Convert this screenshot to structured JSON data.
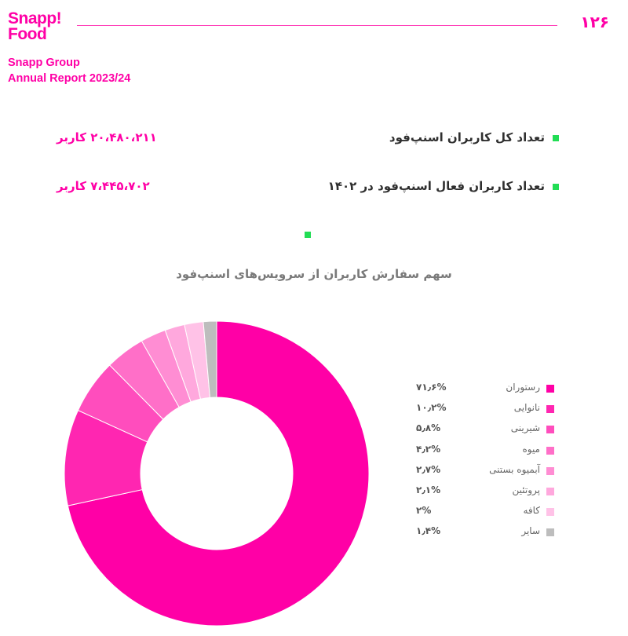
{
  "header": {
    "logo_line1": "Snapp!",
    "logo_line2": "Food",
    "page_number": "۱۲۶",
    "org_name": "Snapp Group",
    "report_title": "Annual Report 2023/24"
  },
  "stats": [
    {
      "label": "تعداد کل کاربران اسنپ‌فود",
      "value": "۲۰،۴۸۰،۲۱۱ کاربر"
    },
    {
      "label": "تعداد کاربران فعال اسنپ‌فود در ۱۴۰۲",
      "value": "۷،۴۴۵،۷۰۲ کاربر"
    }
  ],
  "chart_data": {
    "type": "pie",
    "title": "سهم سفارش کاربران از سرویس‌های اسنپ‌فود",
    "donut": true,
    "legend_position": "right",
    "slices": [
      {
        "label": "رستوران",
        "value": 71.6,
        "display": "۷۱٫۶%",
        "color": "#ff00a6"
      },
      {
        "label": "نانوایی",
        "value": 10.2,
        "display": "۱۰٫۲%",
        "color": "#ff26b1"
      },
      {
        "label": "شیرینی",
        "value": 5.8,
        "display": "۵٫۸%",
        "color": "#ff4dbd"
      },
      {
        "label": "میوه",
        "value": 4.2,
        "display": "۴٫۲%",
        "color": "#ff6fc8"
      },
      {
        "label": "آبمیوه بستنی",
        "value": 2.7,
        "display": "۲٫۷%",
        "color": "#ff8dd3"
      },
      {
        "label": "پروتئین",
        "value": 2.1,
        "display": "۲٫۱%",
        "color": "#ffa8dd"
      },
      {
        "label": "کافه",
        "value": 2,
        "display": "۲%",
        "color": "#ffc2e7"
      },
      {
        "label": "سایر",
        "value": 1.4,
        "display": "۱٫۴%",
        "color": "#bdbdbd"
      }
    ]
  }
}
